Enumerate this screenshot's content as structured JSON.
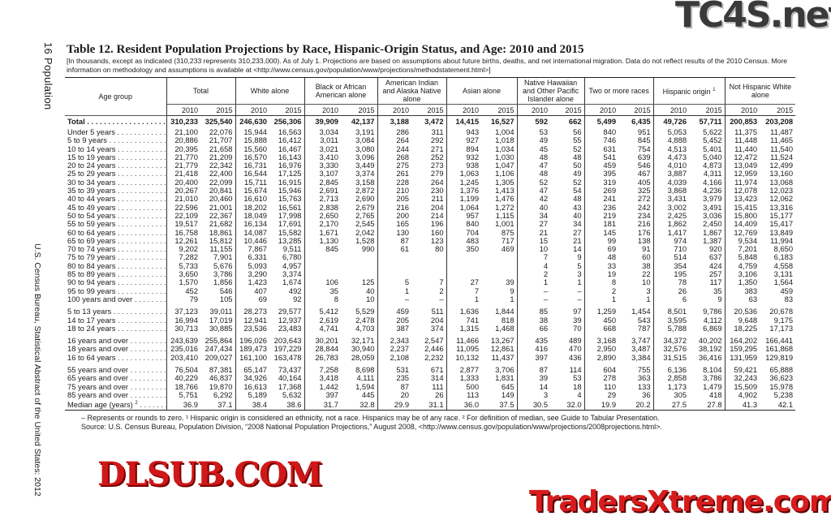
{
  "page_header": {
    "section": "16 Population",
    "footer_side": "U.S. Census Bureau, Statistical Abstract of the United States: 2012"
  },
  "title": "Table 12. Resident Population Projections by Race, Hispanic-Origin Status, and Age: 2010 and 2015",
  "headnote": "[In thousands, except as indicated (310,233 represents 310,233,000). As of July 1. Projections are based on assumptions about future births, deaths, and net international migration. Data do not reflect results of the 2010 Census. More information on methodology and assumptions is available at <http://www.census.gov/population/www/projections/methodstatement.html>]",
  "table": {
    "row_header": "Age group",
    "groups": [
      {
        "label": "Total"
      },
      {
        "label": "White alone"
      },
      {
        "label": "Black or African American alone"
      },
      {
        "label": "American Indian and Alaska Native alone"
      },
      {
        "label": "Asian alone"
      },
      {
        "label": "Native Hawaiian and Other Pacific Islander alone"
      },
      {
        "label": "Two or more races"
      },
      {
        "label": "Hispanic origin",
        "note": "1"
      },
      {
        "label": "Not Hispanic White alone"
      }
    ],
    "years": [
      "2010",
      "2015"
    ],
    "total": {
      "label": "Total",
      "values": [
        "310,233",
        "325,540",
        "246,630",
        "256,306",
        "39,909",
        "42,137",
        "3,188",
        "3,472",
        "14,415",
        "16,527",
        "592",
        "662",
        "5,499",
        "6,435",
        "49,726",
        "57,711",
        "200,853",
        "203,208"
      ]
    },
    "sections": [
      {
        "rows": [
          {
            "label": "Under 5 years",
            "values": [
              "21,100",
              "22,076",
              "15,944",
              "16,563",
              "3,034",
              "3,191",
              "286",
              "311",
              "943",
              "1,004",
              "53",
              "56",
              "840",
              "951",
              "5,053",
              "5,622",
              "11,375",
              "11,487"
            ]
          },
          {
            "label": "5 to 9 years",
            "values": [
              "20,886",
              "21,707",
              "15,888",
              "16,412",
              "3,011",
              "3,084",
              "264",
              "292",
              "927",
              "1,018",
              "49",
              "55",
              "746",
              "845",
              "4,888",
              "5,452",
              "11,448",
              "11,465"
            ]
          },
          {
            "label": "10 to 14 years",
            "values": [
              "20,395",
              "21,658",
              "15,560",
              "16,467",
              "3,021",
              "3,080",
              "244",
              "271",
              "894",
              "1,034",
              "45",
              "52",
              "631",
              "754",
              "4,513",
              "5,401",
              "11,440",
              "11,540"
            ]
          },
          {
            "label": "15 to 19 years",
            "values": [
              "21,770",
              "21,209",
              "16,570",
              "16,143",
              "3,410",
              "3,096",
              "268",
              "252",
              "932",
              "1,030",
              "48",
              "48",
              "541",
              "639",
              "4,473",
              "5,040",
              "12,472",
              "11,524"
            ]
          },
          {
            "label": "20 to 24 years",
            "values": [
              "21,779",
              "22,342",
              "16,731",
              "16,976",
              "3,330",
              "3,449",
              "275",
              "273",
              "938",
              "1,047",
              "47",
              "50",
              "459",
              "546",
              "4,010",
              "4,873",
              "13,049",
              "12,499"
            ]
          },
          {
            "label": "25 to 29 years",
            "values": [
              "21,418",
              "22,400",
              "16,544",
              "17,125",
              "3,107",
              "3,374",
              "261",
              "279",
              "1,063",
              "1,106",
              "48",
              "49",
              "395",
              "467",
              "3,887",
              "4,311",
              "12,959",
              "13,160"
            ]
          },
          {
            "label": "30 to 34 years",
            "values": [
              "20,400",
              "22,099",
              "15,711",
              "16,915",
              "2,845",
              "3,158",
              "228",
              "264",
              "1,245",
              "1,305",
              "52",
              "52",
              "319",
              "405",
              "4,039",
              "4,166",
              "11,974",
              "13,068"
            ]
          },
          {
            "label": "35 to 39 years",
            "values": [
              "20,267",
              "20,841",
              "15,674",
              "15,946",
              "2,691",
              "2,872",
              "210",
              "230",
              "1,376",
              "1,413",
              "47",
              "54",
              "269",
              "325",
              "3,868",
              "4,236",
              "12,078",
              "12,023"
            ]
          },
          {
            "label": "40 to 44 years",
            "values": [
              "21,010",
              "20,460",
              "16,610",
              "15,763",
              "2,713",
              "2,690",
              "205",
              "211",
              "1,199",
              "1,476",
              "42",
              "48",
              "241",
              "272",
              "3,431",
              "3,979",
              "13,423",
              "12,062"
            ]
          },
          {
            "label": "45 to 49 years",
            "values": [
              "22,596",
              "21,001",
              "18,202",
              "16,561",
              "2,838",
              "2,679",
              "216",
              "204",
              "1,064",
              "1,272",
              "40",
              "43",
              "236",
              "242",
              "3,002",
              "3,491",
              "15,415",
              "13,316"
            ]
          },
          {
            "label": "50 to 54 years",
            "values": [
              "22,109",
              "22,367",
              "18,049",
              "17,998",
              "2,650",
              "2,765",
              "200",
              "214",
              "957",
              "1,115",
              "34",
              "40",
              "219",
              "234",
              "2,425",
              "3,036",
              "15,800",
              "15,177"
            ]
          },
          {
            "label": "55 to 59 years",
            "values": [
              "19,517",
              "21,682",
              "16,134",
              "17,691",
              "2,170",
              "2,545",
              "165",
              "196",
              "840",
              "1,001",
              "27",
              "34",
              "181",
              "216",
              "1,862",
              "2,450",
              "14,409",
              "15,417"
            ]
          },
          {
            "label": "60 to 64 years",
            "values": [
              "16,758",
              "18,861",
              "14,087",
              "15,582",
              "1,671",
              "2,042",
              "130",
              "160",
              "704",
              "875",
              "21",
              "27",
              "145",
              "176",
              "1,417",
              "1,867",
              "12,769",
              "13,849"
            ]
          },
          {
            "label": "65 to 69 years",
            "values": [
              "12,261",
              "15,812",
              "10,446",
              "13,285",
              "1,130",
              "1,528",
              "87",
              "123",
              "483",
              "717",
              "15",
              "21",
              "99",
              "138",
              "974",
              "1,387",
              "9,534",
              "11,994"
            ]
          },
          {
            "label": "70 to 74 years",
            "values": [
              "9,202",
              "11,155",
              "7,867",
              "9,511",
              "845",
              "990",
              "61",
              "80",
              "350",
              "469",
              "10",
              "14",
              "69",
              "91",
              "710",
              "920",
              "7,201",
              "8,650"
            ]
          },
          {
            "label": "75 to 79 years",
            "values": [
              "7,282",
              "7,901",
              "6,331",
              "6,780",
              "",
              "",
              "",
              "",
              "",
              "",
              "7",
              "9",
              "48",
              "60",
              "514",
              "637",
              "5,848",
              "6,183"
            ]
          },
          {
            "label": "80 to 84 years",
            "values": [
              "5,733",
              "5,676",
              "5,093",
              "4,957",
              "",
              "",
              "",
              "",
              "",
              "",
              "4",
              "5",
              "33",
              "38",
              "354",
              "424",
              "4,759",
              "4,558"
            ]
          },
          {
            "label": "85 to 89 years",
            "values": [
              "3,650",
              "3,786",
              "3,290",
              "3,374",
              "",
              "",
              "",
              "",
              "",
              "",
              "2",
              "3",
              "19",
              "22",
              "195",
              "257",
              "3,106",
              "3,131"
            ]
          },
          {
            "label": "90 to 94 years",
            "values": [
              "1,570",
              "1,856",
              "1,423",
              "1,674",
              "106",
              "125",
              "5",
              "7",
              "27",
              "39",
              "1",
              "1",
              "8",
              "10",
              "78",
              "117",
              "1,350",
              "1,564"
            ]
          },
          {
            "label": "95 to 99 years",
            "values": [
              "452",
              "546",
              "407",
              "492",
              "35",
              "40",
              "1",
              "2",
              "7",
              "9",
              "–",
              "–",
              "2",
              "3",
              "26",
              "35",
              "383",
              "459"
            ]
          },
          {
            "label": "100 years and over",
            "values": [
              "79",
              "105",
              "69",
              "92",
              "8",
              "10",
              "–",
              "–",
              "1",
              "1",
              "–",
              "–",
              "1",
              "1",
              "6",
              "9",
              "63",
              "83"
            ]
          }
        ]
      },
      {
        "rows": [
          {
            "label": "5 to 13 years",
            "values": [
              "37,123",
              "39,011",
              "28,273",
              "29,577",
              "5,412",
              "5,529",
              "459",
              "511",
              "1,636",
              "1,844",
              "85",
              "97",
              "1,259",
              "1,454",
              "8,501",
              "9,786",
              "20,536",
              "20,678"
            ]
          },
          {
            "label": "14 to 17 years",
            "values": [
              "16,994",
              "17,019",
              "12,941",
              "12,937",
              "2,619",
              "2,478",
              "205",
              "204",
              "741",
              "818",
              "38",
              "39",
              "450",
              "543",
              "3,595",
              "4,112",
              "9,648",
              "9,175"
            ]
          },
          {
            "label": "18 to 24 years",
            "values": [
              "30,713",
              "30,885",
              "23,536",
              "23,483",
              "4,741",
              "4,703",
              "387",
              "374",
              "1,315",
              "1,468",
              "66",
              "70",
              "668",
              "787",
              "5,788",
              "6,869",
              "18,225",
              "17,173"
            ]
          }
        ]
      },
      {
        "rows": [
          {
            "label": "16 years and over",
            "values": [
              "243,639",
              "255,864",
              "196,026",
              "203,643",
              "30,201",
              "32,171",
              "2,343",
              "2,547",
              "11,466",
              "13,267",
              "435",
              "489",
              "3,168",
              "3,747",
              "34,372",
              "40,202",
              "164,202",
              "166,441"
            ]
          },
          {
            "label": "18 years and over",
            "values": [
              "235,016",
              "247,434",
              "189,473",
              "197,229",
              "28,844",
              "30,940",
              "2,237",
              "2,446",
              "11,095",
              "12,861",
              "416",
              "470",
              "2,950",
              "3,487",
              "32,576",
              "38,192",
              "159,295",
              "161,868"
            ]
          },
          {
            "label": "16 to 64 years",
            "values": [
              "203,410",
              "209,027",
              "161,100",
              "163,478",
              "26,783",
              "28,059",
              "2,108",
              "2,232",
              "10,132",
              "11,437",
              "397",
              "436",
              "2,890",
              "3,384",
              "31,515",
              "36,416",
              "131,959",
              "129,819"
            ]
          }
        ]
      },
      {
        "rows": [
          {
            "label": "55 years and over",
            "values": [
              "76,504",
              "87,381",
              "65,147",
              "73,437",
              "7,258",
              "8,698",
              "531",
              "671",
              "2,877",
              "3,706",
              "87",
              "114",
              "604",
              "755",
              "6,136",
              "8,104",
              "59,421",
              "65,888"
            ]
          },
          {
            "label": "65 years and over",
            "values": [
              "40,229",
              "46,837",
              "34,926",
              "40,164",
              "3,418",
              "4,111",
              "235",
              "314",
              "1,333",
              "1,831",
              "39",
              "53",
              "278",
              "363",
              "2,858",
              "3,786",
              "32,243",
              "36,623"
            ]
          },
          {
            "label": "75 years and over",
            "values": [
              "18,766",
              "19,870",
              "16,613",
              "17,368",
              "1,442",
              "1,594",
              "87",
              "111",
              "500",
              "645",
              "14",
              "18",
              "110",
              "133",
              "1,173",
              "1,479",
              "15,509",
              "15,978"
            ]
          },
          {
            "label": "85 years and over",
            "values": [
              "5,751",
              "6,292",
              "5,189",
              "5,632",
              "397",
              "445",
              "20",
              "26",
              "113",
              "149",
              "3",
              "4",
              "29",
              "36",
              "305",
              "418",
              "4,902",
              "5,238"
            ]
          }
        ]
      }
    ],
    "median": {
      "label": "Median age (years)",
      "note": "2",
      "values": [
        "36.9",
        "37.1",
        "38.4",
        "38.6",
        "31.7",
        "32.8",
        "29.9",
        "31.1",
        "36.0",
        "37.5",
        "30.5",
        "32.0",
        "19.9",
        "20.2",
        "27.5",
        "27.8",
        "41.3",
        "42.1"
      ]
    }
  },
  "footnotes": {
    "line1": "– Represents or rounds to zero. ¹ Hispanic origin is considered an ethnicity, not a race. Hispanics may be of any race. ² For definition of median, see Guide to Tabular Presentation.",
    "line2": "Source: U.S. Census Bureau, Population Division, “2008 National Population Projections,” August 2008, <http://www.census.gov/population/www/projections/2008projections.html>."
  },
  "watermarks": {
    "top_right": "TC4S.net",
    "center": "DLSUB.COM",
    "bottom_right": "TradersXtreme.com"
  }
}
